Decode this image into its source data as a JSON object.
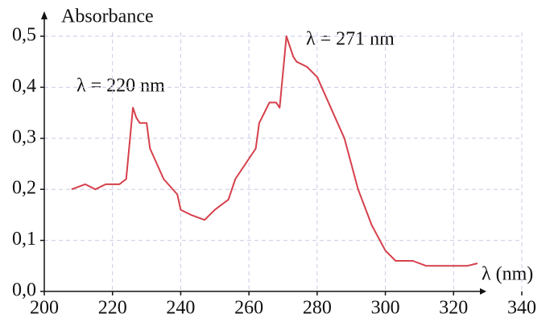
{
  "chart_data": {
    "type": "line",
    "y_label": "Absorbance",
    "x_label": "λ (nm)",
    "annotations": [
      "λ = 220 nm",
      "λ = 271 nm"
    ],
    "x": [
      208,
      212,
      215,
      218,
      222,
      224,
      226,
      227,
      228,
      230,
      231,
      235,
      239,
      240,
      243,
      247,
      250,
      254,
      256,
      259,
      262,
      263,
      266,
      268,
      269,
      271,
      273,
      274,
      277,
      280,
      284,
      288,
      292,
      296,
      300,
      303,
      308,
      312,
      316,
      320,
      324,
      327
    ],
    "series": [
      {
        "color": "#d6404b",
        "values": [
          0.2,
          0.21,
          0.2,
          0.21,
          0.21,
          0.22,
          0.36,
          0.34,
          0.33,
          0.33,
          0.28,
          0.22,
          0.19,
          0.16,
          0.15,
          0.14,
          0.16,
          0.18,
          0.22,
          0.25,
          0.28,
          0.33,
          0.37,
          0.37,
          0.36,
          0.5,
          0.46,
          0.45,
          0.44,
          0.42,
          0.36,
          0.3,
          0.2,
          0.13,
          0.08,
          0.06,
          0.06,
          0.05,
          0.05,
          0.05,
          0.05,
          0.055
        ]
      }
    ],
    "xlim": [
      200,
      340
    ],
    "xticks": [
      200,
      220,
      240,
      260,
      280,
      300,
      320,
      340
    ],
    "ylim": [
      0,
      0.5
    ],
    "yticks": [
      {
        "value": 0,
        "label": "0,0"
      },
      {
        "value": 0.1,
        "label": "0,1"
      },
      {
        "value": 0.2,
        "label": "0,2"
      },
      {
        "value": 0.3,
        "label": "0,3"
      },
      {
        "value": 0.4,
        "label": "0,4"
      },
      {
        "value": 0.5,
        "label": "0,5"
      }
    ],
    "grid": true
  }
}
